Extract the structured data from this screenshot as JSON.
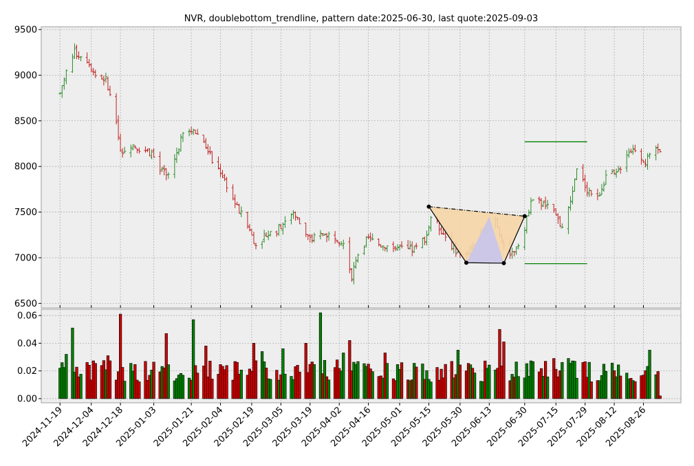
{
  "chart_data": {
    "title": "NVR, doublebottom_trendline, pattern date:2025-06-30, last quote:2025-09-03",
    "price_panel": {
      "type": "ohlc",
      "ylim": [
        6450,
        9530
      ],
      "yticks": [
        6500,
        7000,
        7500,
        8000,
        8500,
        9000,
        9500
      ],
      "grid": true,
      "xlim": [
        "2024-11-10",
        "2025-09-13"
      ],
      "xtick_labels": [
        "2024-11-19",
        "2024-12-04",
        "2024-12-18",
        "2025-01-03",
        "2025-01-21",
        "2025-02-04",
        "2025-02-19",
        "2025-03-05",
        "2025-03-19",
        "2025-04-02",
        "2025-04-16",
        "2025-05-01",
        "2025-05-15",
        "2025-05-30",
        "2025-06-13",
        "2025-06-30",
        "2025-07-15",
        "2025-07-29",
        "2025-08-12",
        "2025-08-26"
      ],
      "price_path": [
        [
          "2024-11-19",
          8800
        ],
        [
          "2024-11-22",
          9050
        ],
        [
          "2024-11-26",
          9250
        ],
        [
          "2024-12-02",
          9180
        ],
        [
          "2024-12-06",
          9000
        ],
        [
          "2024-12-11",
          8950
        ],
        [
          "2024-12-16",
          8500
        ],
        [
          "2024-12-18",
          8150
        ],
        [
          "2024-12-23",
          8250
        ],
        [
          "2024-12-27",
          8200
        ],
        [
          "2025-01-02",
          8150
        ],
        [
          "2025-01-06",
          7950
        ],
        [
          "2025-01-10",
          7900
        ],
        [
          "2025-01-14",
          8150
        ],
        [
          "2025-01-17",
          8350
        ],
        [
          "2025-01-22",
          8400
        ],
        [
          "2025-01-28",
          8250
        ],
        [
          "2025-01-31",
          8050
        ],
        [
          "2025-02-04",
          7950
        ],
        [
          "2025-02-07",
          7800
        ],
        [
          "2025-02-12",
          7550
        ],
        [
          "2025-02-17",
          7350
        ],
        [
          "2025-02-21",
          7150
        ],
        [
          "2025-02-26",
          7250
        ],
        [
          "2025-03-03",
          7300
        ],
        [
          "2025-03-07",
          7400
        ],
        [
          "2025-03-11",
          7500
        ],
        [
          "2025-03-14",
          7380
        ],
        [
          "2025-03-19",
          7200
        ],
        [
          "2025-03-25",
          7250
        ],
        [
          "2025-03-31",
          7250
        ],
        [
          "2025-04-04",
          7150
        ],
        [
          "2025-04-08",
          6800
        ],
        [
          "2025-04-10",
          7000
        ],
        [
          "2025-04-15",
          7200
        ],
        [
          "2025-04-22",
          7150
        ],
        [
          "2025-04-29",
          7100
        ],
        [
          "2025-05-05",
          7080
        ],
        [
          "2025-05-09",
          7100
        ],
        [
          "2025-05-14",
          7250
        ],
        [
          "2025-05-16",
          7450
        ],
        [
          "2025-05-21",
          7300
        ],
        [
          "2025-05-27",
          7100
        ],
        [
          "2025-06-02",
          7020
        ],
        [
          "2025-06-06",
          7150
        ],
        [
          "2025-06-11",
          7300
        ],
        [
          "2025-06-16",
          7450
        ],
        [
          "2025-06-20",
          7100
        ],
        [
          "2025-06-24",
          7050
        ],
        [
          "2025-06-30",
          7300
        ],
        [
          "2025-07-03",
          7650
        ],
        [
          "2025-07-08",
          7600
        ],
        [
          "2025-07-11",
          7550
        ],
        [
          "2025-07-15",
          7450
        ],
        [
          "2025-07-18",
          7350
        ],
        [
          "2025-07-22",
          7600
        ],
        [
          "2025-07-25",
          7950
        ],
        [
          "2025-07-30",
          7750
        ],
        [
          "2025-08-04",
          7650
        ],
        [
          "2025-08-08",
          7900
        ],
        [
          "2025-08-13",
          7900
        ],
        [
          "2025-08-18",
          8150
        ],
        [
          "2025-08-22",
          8200
        ],
        [
          "2025-08-27",
          8050
        ],
        [
          "2025-09-03",
          8200
        ]
      ],
      "pattern": {
        "points": [
          {
            "date": "2025-05-15",
            "value": 7560
          },
          {
            "date": "2025-06-02",
            "value": 6945
          },
          {
            "date": "2025-06-20",
            "value": 6940
          },
          {
            "date": "2025-06-30",
            "value": 7455
          }
        ],
        "peak": {
          "date": "2025-06-13",
          "value": 7450
        },
        "fill_color": "#f5d5a6",
        "peak_fill_color": "#c4c4f0",
        "upper_target": {
          "value": 8270,
          "start": "2025-06-30",
          "end": "2025-07-30"
        },
        "lower_target": {
          "value": 6935,
          "start": "2025-06-30",
          "end": "2025-07-30"
        },
        "target_color": "#008000"
      },
      "up_color": "#2a8a2a",
      "down_color": "#c02020"
    },
    "volume_panel": {
      "type": "bar",
      "ylim": [
        -0.003,
        0.0645
      ],
      "yticks": [
        "0.00",
        "0.02",
        "0.04",
        "0.06"
      ],
      "ytick_values": [
        0,
        0.02,
        0.04,
        0.06
      ],
      "grid": true,
      "up_color": "#008000",
      "down_color": "#cc0000",
      "spikes": {
        "2024-11-19": 0.022,
        "2024-11-20": 0.026,
        "2024-11-22": 0.032,
        "2024-11-25": 0.051,
        "2024-12-12": 0.031,
        "2024-12-18": 0.061,
        "2025-01-09": 0.047,
        "2025-01-22": 0.057,
        "2025-01-28": 0.038,
        "2025-02-20": 0.04,
        "2025-02-24": 0.034,
        "2025-03-06": 0.036,
        "2025-03-17": 0.04,
        "2025-03-24": 0.062,
        "2025-04-07": 0.042,
        "2025-04-04": 0.033,
        "2025-04-24": 0.033,
        "2025-05-29": 0.035,
        "2025-06-18": 0.05,
        "2025-06-20": 0.041,
        "2025-07-14": 0.029,
        "2025-07-21": 0.029,
        "2025-08-29": 0.035
      },
      "last_value": 0.002
    }
  }
}
